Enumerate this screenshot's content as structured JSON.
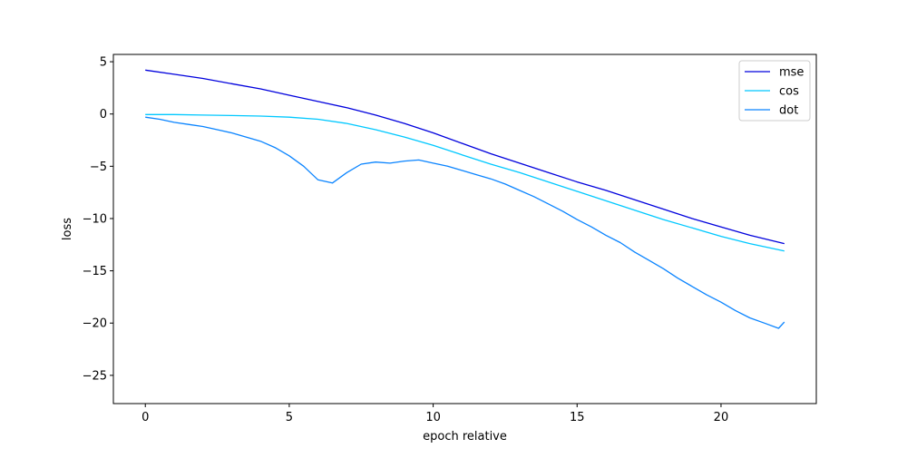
{
  "chart_data": {
    "type": "line",
    "title": "",
    "xlabel": "epoch relative",
    "ylabel": "loss",
    "xlim": [
      -1.11,
      23.31
    ],
    "ylim": [
      -27.7,
      5.7
    ],
    "xticks": [
      0,
      5,
      10,
      15,
      20
    ],
    "yticks": [
      5,
      0,
      -5,
      -10,
      -15,
      -20,
      -25
    ],
    "grid": false,
    "legend_position": "upper right",
    "series": [
      {
        "name": "mse",
        "color": "#0000dd",
        "x": [
          0,
          1,
          2,
          3,
          4,
          5,
          6,
          7,
          8,
          9,
          10,
          11,
          12,
          13,
          14,
          15,
          16,
          17,
          18,
          19,
          20,
          21,
          22.2
        ],
        "y": [
          4.2,
          3.8,
          3.4,
          2.9,
          2.4,
          1.8,
          1.2,
          0.6,
          -0.1,
          -0.9,
          -1.8,
          -2.8,
          -3.8,
          -4.7,
          -5.6,
          -6.5,
          -7.3,
          -8.2,
          -9.1,
          -10.0,
          -10.8,
          -11.6,
          -12.4
        ]
      },
      {
        "name": "cos",
        "color": "#00c8ff",
        "x": [
          0,
          1,
          2,
          3,
          4,
          5,
          6,
          7,
          8,
          9,
          10,
          11,
          12,
          13,
          14,
          15,
          16,
          17,
          18,
          19,
          20,
          21,
          22.2
        ],
        "y": [
          -0.05,
          -0.05,
          -0.1,
          -0.15,
          -0.2,
          -0.3,
          -0.5,
          -0.9,
          -1.5,
          -2.2,
          -3.0,
          -3.9,
          -4.8,
          -5.6,
          -6.5,
          -7.4,
          -8.3,
          -9.2,
          -10.1,
          -10.9,
          -11.7,
          -12.4,
          -13.1
        ]
      },
      {
        "name": "dot",
        "color": "#0a84ff",
        "x": [
          0,
          0.5,
          1,
          1.5,
          2,
          2.5,
          3,
          3.5,
          4,
          4.5,
          5,
          5.5,
          6,
          6.5,
          7,
          7.5,
          8,
          8.5,
          9,
          9.5,
          10,
          10.5,
          11,
          11.5,
          12,
          12.5,
          13,
          13.5,
          14,
          14.5,
          15,
          15.5,
          16,
          16.5,
          17,
          17.5,
          18,
          18.5,
          19,
          19.5,
          20,
          20.5,
          21,
          21.5,
          22,
          22.2
        ],
        "y": [
          -0.3,
          -0.5,
          -0.8,
          -1.0,
          -1.2,
          -1.5,
          -1.8,
          -2.2,
          -2.6,
          -3.2,
          -4.0,
          -5.0,
          -6.3,
          -6.6,
          -5.6,
          -4.8,
          -4.6,
          -4.7,
          -4.5,
          -4.4,
          -4.7,
          -5.0,
          -5.4,
          -5.8,
          -6.2,
          -6.7,
          -7.3,
          -7.9,
          -8.6,
          -9.3,
          -10.1,
          -10.8,
          -11.6,
          -12.3,
          -13.2,
          -14.0,
          -14.8,
          -15.7,
          -16.5,
          -17.3,
          -18.0,
          -18.8,
          -19.5,
          -20.0,
          -20.5,
          -19.9
        ]
      }
    ]
  }
}
